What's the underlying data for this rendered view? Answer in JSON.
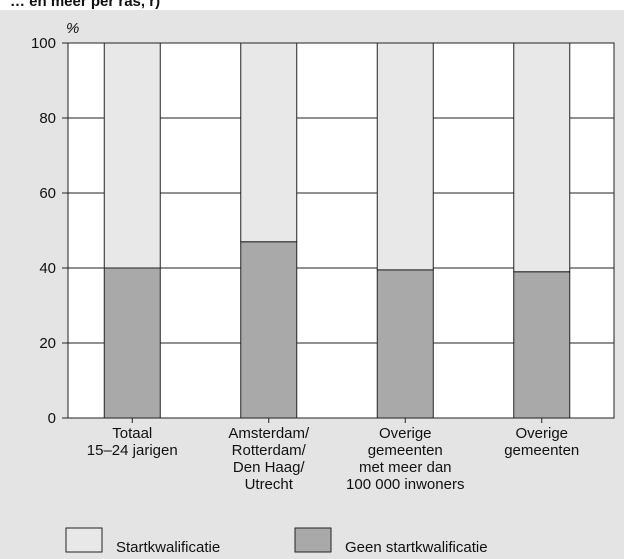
{
  "page": {
    "heading_fragment": "… en meer per ras, r)"
  },
  "chart_data": {
    "type": "bar",
    "stacked": true,
    "unit": "%",
    "ylim": [
      0,
      100
    ],
    "yticks": [
      0,
      20,
      40,
      60,
      80,
      100
    ],
    "grid": true,
    "categories": [
      [
        "Totaal",
        "15–24 jarigen"
      ],
      [
        "Amsterdam/",
        "Rotterdam/",
        "Den Haag/",
        "Utrecht"
      ],
      [
        "Overige",
        "gemeenten",
        "met meer dan",
        "100 000 inwoners"
      ],
      [
        "Overige",
        "gemeenten"
      ]
    ],
    "series": [
      {
        "name": "Geen startkwalificatie",
        "color": "#a9a9a9",
        "values": [
          40,
          47,
          39.5,
          39
        ]
      },
      {
        "name": "Startkwalificatie",
        "color": "#e8e8e8",
        "values": [
          60,
          53,
          60.5,
          61
        ]
      }
    ],
    "legend_position": "bottom",
    "legend": [
      {
        "label": "Startkwalificatie",
        "color": "#e8e8e8"
      },
      {
        "label": "Geen startkwalificatie",
        "color": "#a9a9a9"
      }
    ]
  }
}
